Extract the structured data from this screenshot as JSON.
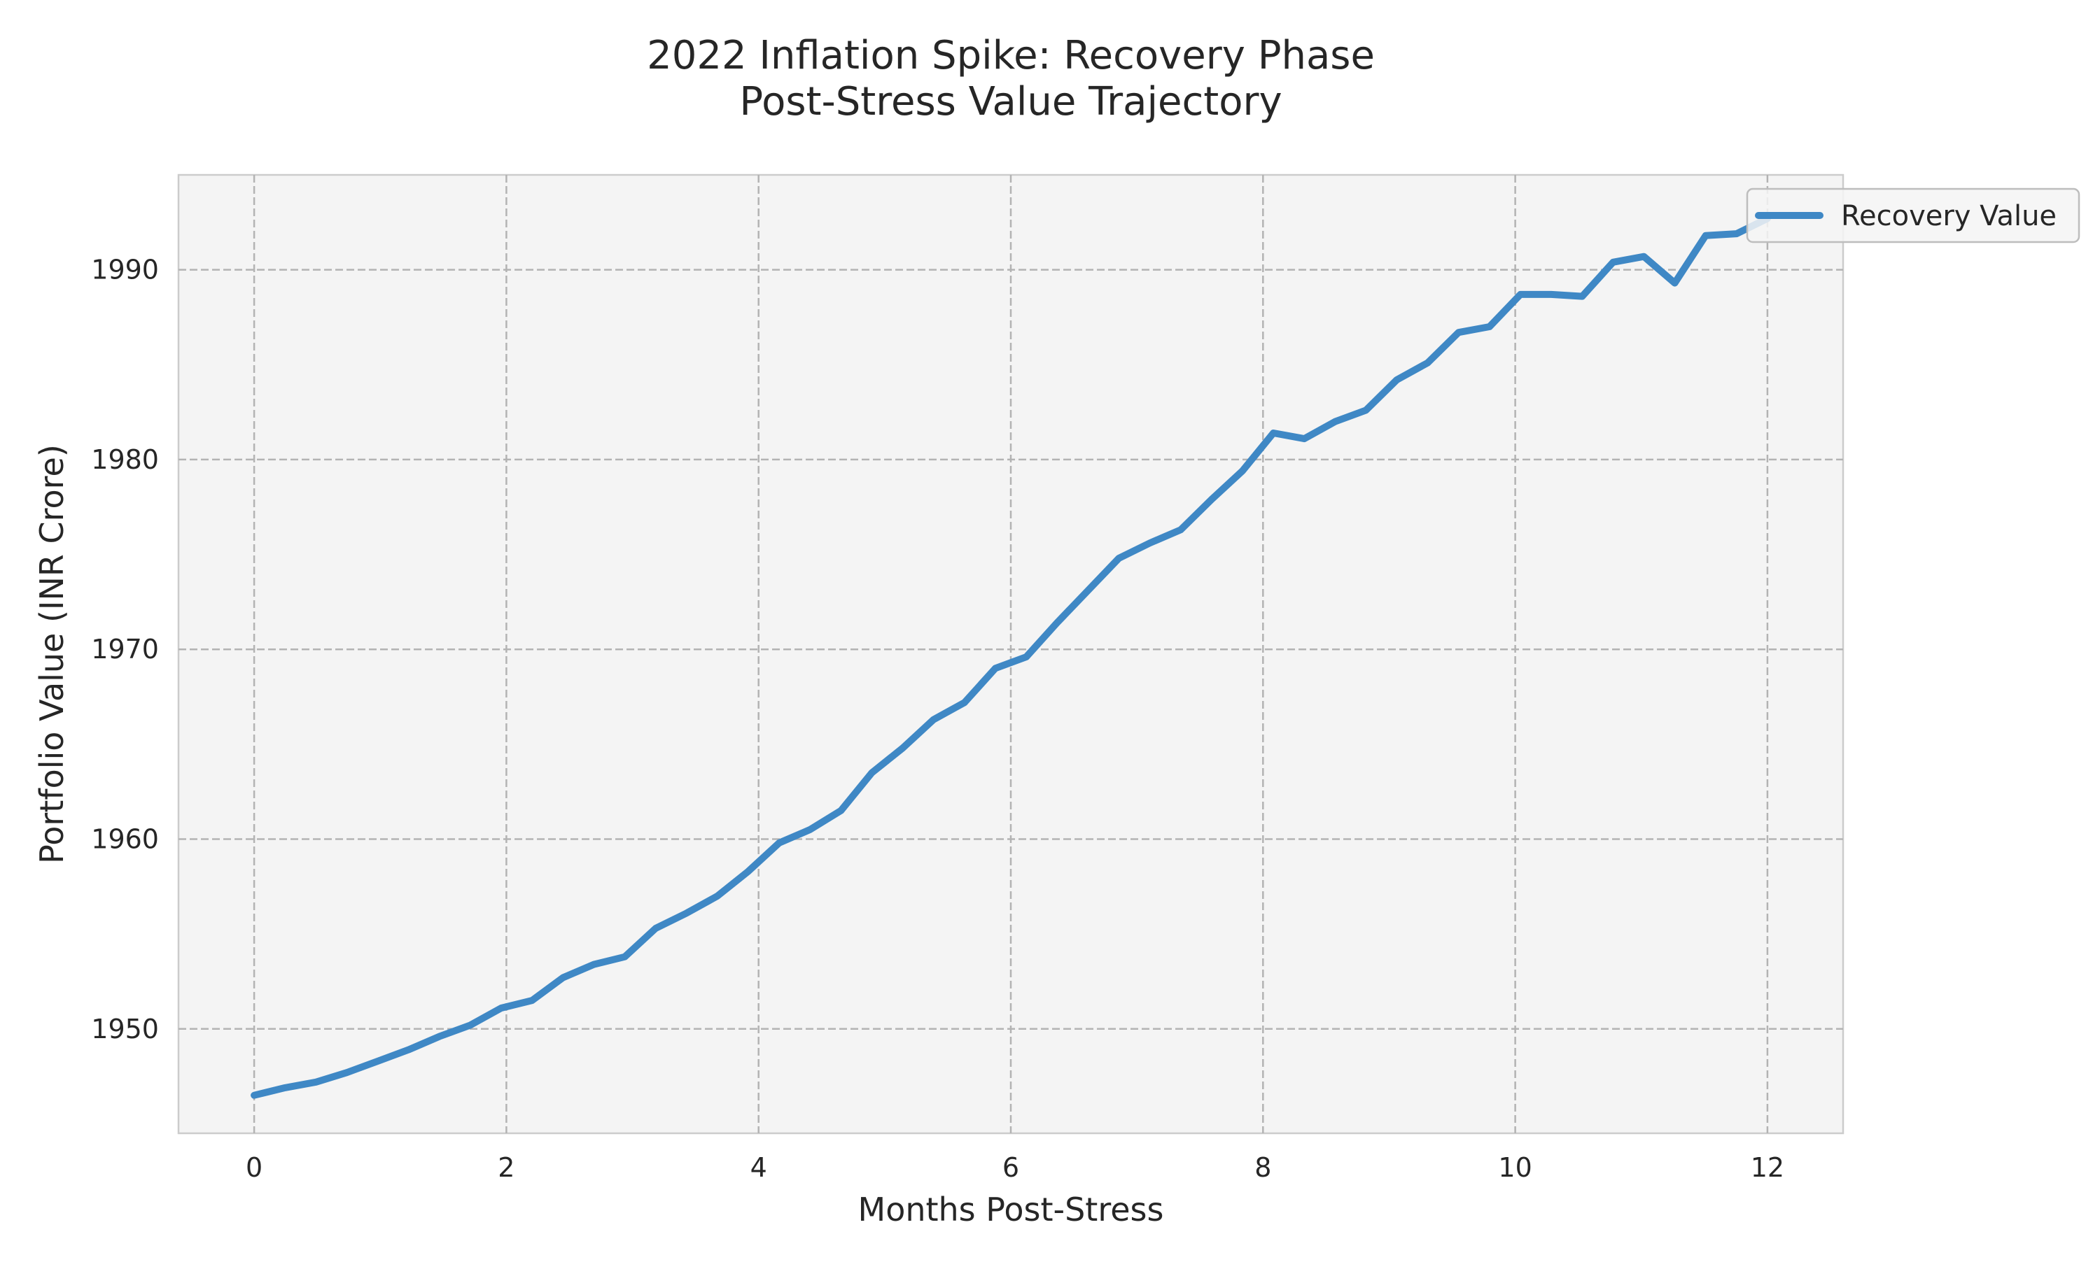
{
  "chart_data": {
    "type": "line",
    "title": "2022 Inflation Spike: Recovery Phase",
    "subtitle": "Post-Stress Value Trajectory",
    "xlabel": "Months Post-Stress",
    "ylabel": "Portfolio Value (INR Crore)",
    "xlim": [
      -0.6,
      12.6
    ],
    "ylim": [
      1944.5,
      1995
    ],
    "x_ticks": [
      0,
      2,
      4,
      6,
      8,
      10,
      12
    ],
    "y_ticks": [
      1950,
      1960,
      1970,
      1980,
      1990
    ],
    "grid": true,
    "legend_position": "top-right",
    "series": [
      {
        "name": "Recovery Value",
        "color": "#3f88c5",
        "x": [
          0,
          0.245,
          0.49,
          0.735,
          0.98,
          1.224,
          1.469,
          1.714,
          1.959,
          2.204,
          2.449,
          2.694,
          2.939,
          3.184,
          3.429,
          3.673,
          3.918,
          4.163,
          4.408,
          4.653,
          4.898,
          5.143,
          5.388,
          5.633,
          5.878,
          6.122,
          6.367,
          6.612,
          6.857,
          7.102,
          7.347,
          7.592,
          7.837,
          8.082,
          8.327,
          8.571,
          8.816,
          9.061,
          9.306,
          9.551,
          9.796,
          10.041,
          10.286,
          10.531,
          10.776,
          11.02,
          11.265,
          11.51,
          11.755,
          12
        ],
        "values": [
          1946.5,
          1946.9,
          1947.2,
          1947.7,
          1948.3,
          1948.9,
          1949.6,
          1950.2,
          1951.1,
          1951.5,
          1952.7,
          1953.4,
          1953.8,
          1955.3,
          1956.1,
          1957.0,
          1958.3,
          1959.8,
          1960.5,
          1961.5,
          1963.5,
          1964.8,
          1966.3,
          1967.2,
          1969.0,
          1969.6,
          1971.4,
          1973.1,
          1974.8,
          1975.6,
          1976.3,
          1977.9,
          1979.4,
          1981.4,
          1981.1,
          1982.0,
          1982.6,
          1984.2,
          1985.1,
          1986.7,
          1987.0,
          1988.7,
          1988.7,
          1988.6,
          1990.4,
          1990.7,
          1989.3,
          1991.8,
          1991.9,
          1992.7
        ]
      }
    ]
  }
}
